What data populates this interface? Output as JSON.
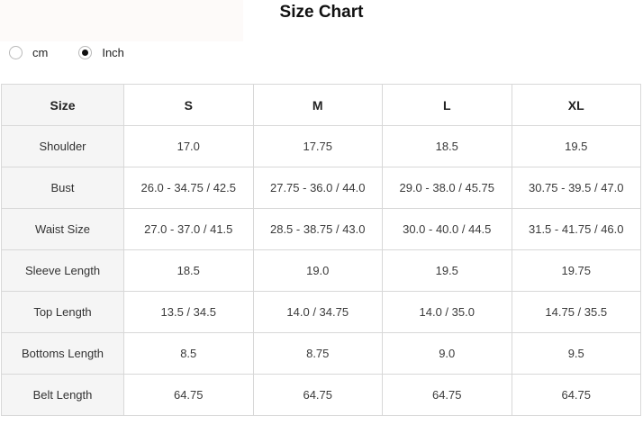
{
  "title": "Size Chart",
  "unit_toggle": {
    "options": [
      {
        "label": "cm",
        "selected": false
      },
      {
        "label": "Inch",
        "selected": true
      }
    ]
  },
  "table": {
    "headers": [
      "Size",
      "S",
      "M",
      "L",
      "XL"
    ],
    "rows": [
      {
        "label": "Shoulder",
        "values": [
          "17.0",
          "17.75",
          "18.5",
          "19.5"
        ]
      },
      {
        "label": "Bust",
        "values": [
          "26.0 - 34.75 / 42.5",
          "27.75 - 36.0 / 44.0",
          "29.0 - 38.0 / 45.75",
          "30.75 - 39.5 / 47.0"
        ]
      },
      {
        "label": "Waist Size",
        "values": [
          "27.0 - 37.0 / 41.5",
          "28.5 - 38.75 / 43.0",
          "30.0 - 40.0 / 44.5",
          "31.5 - 41.75 / 46.0"
        ]
      },
      {
        "label": "Sleeve Length",
        "values": [
          "18.5",
          "19.0",
          "19.5",
          "19.75"
        ]
      },
      {
        "label": "Top Length",
        "values": [
          "13.5 / 34.5",
          "14.0 / 34.75",
          "14.0 / 35.0",
          "14.75 / 35.5"
        ]
      },
      {
        "label": "Bottoms Length",
        "values": [
          "8.5",
          "8.75",
          "9.0",
          "9.5"
        ]
      },
      {
        "label": "Belt Length",
        "values": [
          "64.75",
          "64.75",
          "64.75",
          "64.75"
        ]
      }
    ]
  },
  "colors": {
    "border": "#d8d8d8",
    "label_column_bg": "#f5f5f5",
    "text": "#3a3a3a",
    "radio_selected_dot": "#111111"
  }
}
